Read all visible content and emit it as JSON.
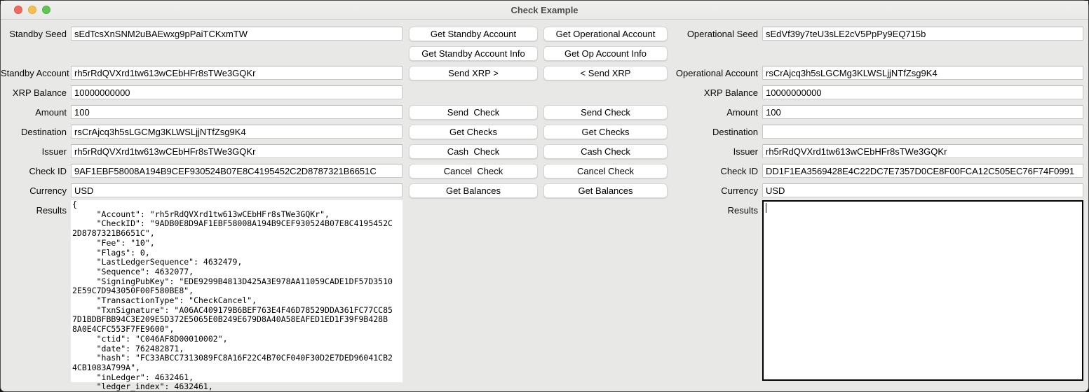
{
  "window": {
    "title": "Check Example"
  },
  "left": {
    "fields": [
      {
        "label": "Standby Seed",
        "value": "sEdTcsXnSNM2uBAEwxg9pPaiTCKxmTW"
      },
      {
        "label": "Standby Account",
        "value": "rh5rRdQVXrd1tw613wCEbHFr8sTWe3GQKr"
      },
      {
        "label": "XRP Balance",
        "value": "10000000000"
      },
      {
        "label": "Amount",
        "value": "100"
      },
      {
        "label": "Destination",
        "value": "rsCrAjcq3h5sLGCMg3KLWSLjjNTfZsg9K4"
      },
      {
        "label": "Issuer",
        "value": "rh5rRdQVXrd1tw613wCEbHFr8sTWe3GQKr"
      },
      {
        "label": "Check ID",
        "value": "9AF1EBF58008A194B9CEF930524B07E8C4195452C2D8787321B6651C"
      },
      {
        "label": "Currency",
        "value": "USD"
      }
    ],
    "results_label": "Results",
    "results_text": "{\n     \"Account\": \"rh5rRdQVXrd1tw613wCEbHFr8sTWe3GQKr\",\n     \"CheckID\": \"9ADB0E8D9AF1EBF58008A194B9CEF930524B07E8C4195452C\n2D8787321B6651C\",\n     \"Fee\": \"10\",\n     \"Flags\": 0,\n     \"LastLedgerSequence\": 4632479,\n     \"Sequence\": 4632077,\n     \"SigningPubKey\": \"EDE9299B4813D425A3E978AA11059CADE1DF57D3510\n2E59C7D943050F00F580BE8\",\n     \"TransactionType\": \"CheckCancel\",\n     \"TxnSignature\": \"A06AC409179B6BEF763E4F46D78529DDA361FC77CC85\n7D1BDBFBB94C3E209E5D372E5065E0B249E679D8A40A58EAFED1ED1F39F9B428B\n8A0E4CFC553F7FE9600\",\n     \"ctid\": \"C046AF8D00010002\",\n     \"date\": 762482871,\n     \"hash\": \"FC33ABCC7313089FC8A16F22C4B70CF040F30D2E7DED96041CB2\n4CB1083A799A\",\n     \"inLedger\": 4632461,\n     \"ledger_index\": 4632461,"
  },
  "right": {
    "fields": [
      {
        "label": "Operational Seed",
        "value": "sEdVf39y7teU3sLE2cV5PpPy9EQ715b"
      },
      {
        "label": "Operational Account",
        "value": "rsCrAjcq3h5sLGCMg3KLWSLjjNTfZsg9K4"
      },
      {
        "label": "XRP Balance",
        "value": "10000000000"
      },
      {
        "label": "Amount",
        "value": "100"
      },
      {
        "label": "Destination",
        "value": ""
      },
      {
        "label": "Issuer",
        "value": "rh5rRdQVXrd1tw613wCEbHFr8sTWe3GQKr"
      },
      {
        "label": "Check ID",
        "value": "DD1F1EA3569428E4C22DC7E7357D0CE8F00FCA12C505EC76F74F0991"
      },
      {
        "label": "Currency",
        "value": "USD"
      }
    ],
    "results_label": "Results",
    "results_text": ""
  },
  "buttons": {
    "standby": [
      "Get Standby Account",
      "Get Standby Account Info",
      "Send XRP >",
      "Send  Check",
      "Get Checks",
      "Cash  Check",
      "Cancel  Check",
      "Get Balances"
    ],
    "operational": [
      "Get Operational Account",
      "Get Op Account Info",
      "< Send XRP",
      "Send Check",
      "Get Checks",
      "Cash Check",
      "Cancel Check",
      "Get Balances"
    ]
  },
  "colors": {
    "titlebar": "#efefee",
    "content_bg": "#e8e8e7",
    "close_light": "#ed6a5e",
    "minimize_light": "#f5bf4f",
    "zoom_light": "#61c454",
    "focused_border": "#000000"
  }
}
